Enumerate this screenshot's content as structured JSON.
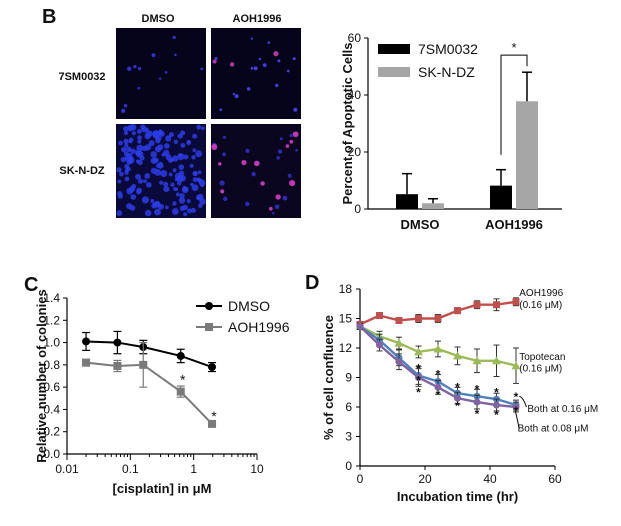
{
  "panels": {
    "B": "B",
    "C": "C",
    "D": "D"
  },
  "microscopy": {
    "col_labels": [
      "DMSO",
      "AOH1996"
    ],
    "row_labels": [
      "7SM0032",
      "SK-N-DZ"
    ]
  },
  "chart_data": [
    {
      "id": "B",
      "type": "bar",
      "categories": [
        "DMSO",
        "AOH1996"
      ],
      "series": [
        {
          "name": "7SM0032",
          "values": [
            5.2,
            8.2
          ],
          "errors": [
            7.2,
            5.6
          ],
          "color": "#000000"
        },
        {
          "name": "SK-N-DZ",
          "values": [
            2.0,
            37.8
          ],
          "errors": [
            1.6,
            10.2
          ],
          "color": "#a6a6a6"
        }
      ],
      "xlabel": "",
      "ylabel": "Percent of Apoptotic Cells",
      "ylim": [
        0,
        60
      ],
      "yticks": [
        0,
        20,
        40,
        60
      ],
      "annotation": "*",
      "legend": "top-left"
    },
    {
      "id": "C",
      "type": "line",
      "xscale": "log",
      "xlim": [
        0.01,
        10
      ],
      "xticks": [
        0.01,
        0.1,
        1,
        10
      ],
      "xticklabels": [
        "0.01",
        "0.1",
        "1",
        "10"
      ],
      "ylim": [
        0.0,
        1.4
      ],
      "yticks": [
        0.0,
        0.2,
        0.4,
        0.6,
        0.8,
        1.0,
        1.2,
        1.4
      ],
      "yticklabels": [
        "0.0",
        "0.2",
        "0.4",
        "0.6",
        "0.8",
        "1.0",
        "1.2",
        "1.4"
      ],
      "xlabel": "[cisplatin] in μM",
      "ylabel": "Relative number of colonies",
      "legend": "top-right",
      "series": [
        {
          "name": "DMSO",
          "color": "#000000",
          "marker": "circle",
          "x": [
            0.02,
            0.0625,
            0.16,
            0.625,
            1.95
          ],
          "y": [
            1.01,
            1.0,
            0.96,
            0.88,
            0.78
          ],
          "err": [
            0.08,
            0.1,
            0.06,
            0.06,
            0.04
          ]
        },
        {
          "name": "AOH1996",
          "color": "#7a7a7a",
          "marker": "square",
          "x": [
            0.02,
            0.0625,
            0.16,
            0.625,
            1.95
          ],
          "y": [
            0.82,
            0.79,
            0.8,
            0.56,
            0.27
          ],
          "err": [
            0.03,
            0.05,
            0.2,
            0.05,
            0.02
          ]
        }
      ],
      "annotations": [
        {
          "text": "*",
          "x": 0.625,
          "y": 0.66
        },
        {
          "text": "*",
          "x": 1.95,
          "y": 0.33
        }
      ]
    },
    {
      "id": "D",
      "type": "line",
      "xlim": [
        0,
        60
      ],
      "xticks": [
        0,
        20,
        40,
        60
      ],
      "ylim": [
        0,
        18
      ],
      "yticks": [
        0,
        3,
        6,
        9,
        12,
        15,
        18
      ],
      "xlabel": "Incubation time (hr)",
      "ylabel": "% of cell confluence",
      "series": [
        {
          "name": "AOH1996 (0.16 μM)",
          "color": "#c0504d",
          "marker": "square",
          "x": [
            0,
            6,
            12,
            18,
            24,
            30,
            36,
            42,
            48
          ],
          "y": [
            14.4,
            15.3,
            14.8,
            15.0,
            15.0,
            15.8,
            16.4,
            16.4,
            16.7
          ],
          "err": [
            0.2,
            0.3,
            0.2,
            0.4,
            0.4,
            0.3,
            0.4,
            0.6,
            0.4
          ]
        },
        {
          "name": "Topotecan (0.16 μM)",
          "color": "#9bbb59",
          "marker": "triangle",
          "x": [
            0,
            6,
            12,
            18,
            24,
            30,
            36,
            42,
            48
          ],
          "y": [
            14.2,
            13.2,
            12.5,
            11.6,
            11.9,
            11.2,
            10.7,
            10.7,
            10.2
          ],
          "err": [
            0.3,
            0.5,
            0.6,
            0.6,
            0.8,
            0.9,
            1.2,
            1.6,
            1.8
          ]
        },
        {
          "name": "Both at 0.16 μM",
          "color": "#4f81bd",
          "marker": "circle",
          "x": [
            0,
            6,
            12,
            18,
            24,
            30,
            36,
            42,
            48
          ],
          "y": [
            14.2,
            12.8,
            11.0,
            9.2,
            8.6,
            7.4,
            7.1,
            6.8,
            6.2
          ],
          "err": [
            0.3,
            0.6,
            0.8,
            0.9,
            0.7,
            0.6,
            0.7,
            0.6,
            0.5
          ]
        },
        {
          "name": "Both at 0.08 μM",
          "color": "#8064a2",
          "marker": "circle",
          "x": [
            0,
            6,
            12,
            18,
            24,
            30,
            36,
            42,
            48
          ],
          "y": [
            14.2,
            12.3,
            10.6,
            9.0,
            8.0,
            6.9,
            6.5,
            6.2,
            6.0
          ],
          "err": [
            0.3,
            0.6,
            0.8,
            0.9,
            0.7,
            0.6,
            0.7,
            0.6,
            0.5
          ]
        }
      ],
      "labels": [
        {
          "text": "AOH1996",
          "x": 49,
          "y": 17.7
        },
        {
          "text": "(0.16 μM)",
          "x": 49,
          "y": 16.5
        },
        {
          "text": "Topotecan",
          "x": 49,
          "y": 11.2
        },
        {
          "text": "(0.16 μM)",
          "x": 49,
          "y": 10.0
        },
        {
          "text": "Both at 0.16 μM",
          "x": 51.5,
          "y": 5.9
        },
        {
          "text": "Both at 0.08 μM",
          "x": 48.5,
          "y": 3.9
        }
      ],
      "stars": [
        {
          "x": 18,
          "y": 9.9
        },
        {
          "x": 18,
          "y": 8.7
        },
        {
          "x": 18,
          "y": 7.5
        },
        {
          "x": 24,
          "y": 9.3
        },
        {
          "x": 24,
          "y": 7.2
        },
        {
          "x": 30,
          "y": 8.0
        },
        {
          "x": 30,
          "y": 6.1
        },
        {
          "x": 36,
          "y": 7.8
        },
        {
          "x": 36,
          "y": 5.3
        },
        {
          "x": 42,
          "y": 7.5
        },
        {
          "x": 42,
          "y": 5.2
        },
        {
          "x": 48,
          "y": 7.0
        },
        {
          "x": 48,
          "y": 5.6
        }
      ]
    }
  ]
}
